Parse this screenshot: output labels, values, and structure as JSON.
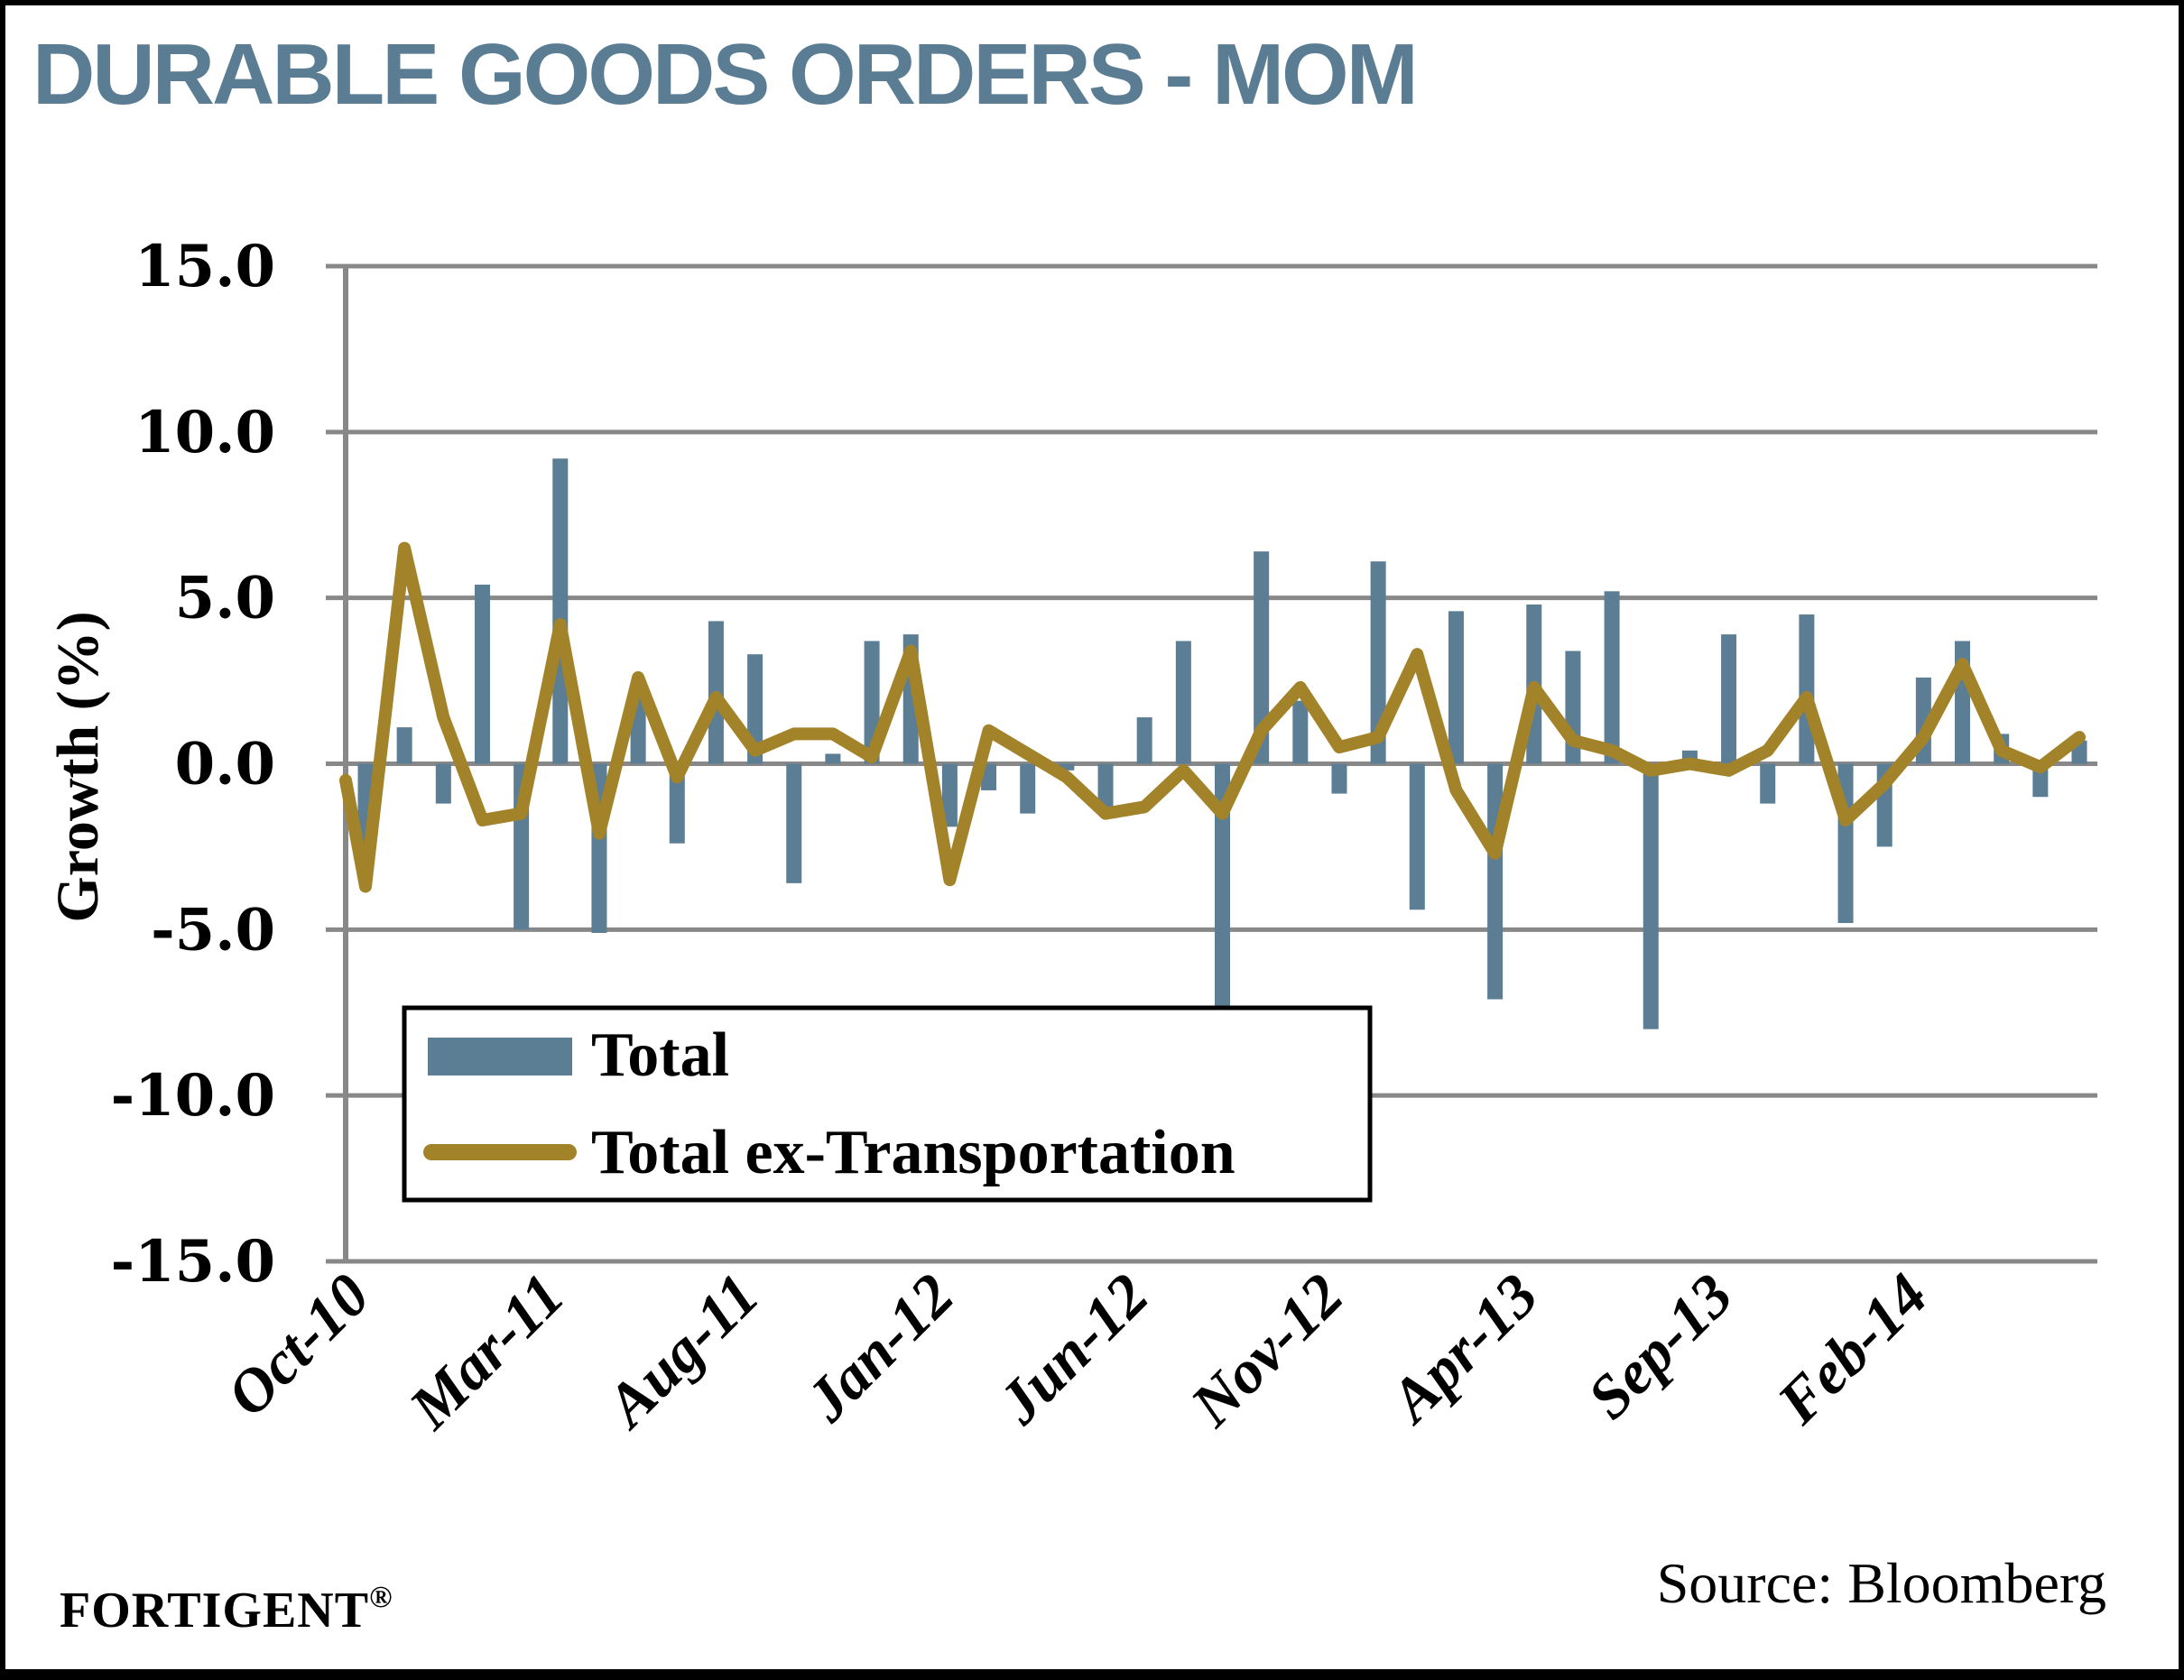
{
  "title": "DURABLE GOODS ORDERS - MOM",
  "footer": {
    "brand": "FORTIGENT",
    "brand_mark": "®",
    "source": "Source: Bloomberg"
  },
  "colors": {
    "title": "#5b7d93",
    "bars": "#5b7e94",
    "line": "#a3832a",
    "grid": "#888888"
  },
  "chart_data": {
    "type": "bar+line",
    "title": "DURABLE GOODS ORDERS - MOM",
    "xlabel": "",
    "ylabel": "Growth (%)",
    "ylim": [
      -15,
      15
    ],
    "yticks": [
      15,
      10,
      5,
      0,
      -5,
      -10,
      -15
    ],
    "ytick_labels": [
      "15.0",
      "10.0",
      "5.0",
      "0.0",
      "-5.0",
      "-10.0",
      "-15.0"
    ],
    "grid": true,
    "legend_position": "bottom-left",
    "x_tick_labels": [
      "Oct-10",
      "Mar-11",
      "Aug-11",
      "Jan-12",
      "Jun-12",
      "Nov-12",
      "Apr-13",
      "Sep-13",
      "Feb-14"
    ],
    "x_tick_every": 5,
    "categories": [
      "Oct-10",
      "Nov-10",
      "Dec-10",
      "Jan-11",
      "Feb-11",
      "Mar-11",
      "Apr-11",
      "May-11",
      "Jun-11",
      "Jul-11",
      "Aug-11",
      "Sep-11",
      "Oct-11",
      "Nov-11",
      "Dec-11",
      "Jan-12",
      "Feb-12",
      "Mar-12",
      "Apr-12",
      "May-12",
      "Jun-12",
      "Jul-12",
      "Aug-12",
      "Sep-12",
      "Oct-12",
      "Nov-12",
      "Dec-12",
      "Jan-13",
      "Feb-13",
      "Mar-13",
      "Apr-13",
      "May-13",
      "Jun-13",
      "Jul-13",
      "Aug-13",
      "Sep-13",
      "Oct-13",
      "Nov-13",
      "Dec-13",
      "Jan-14",
      "Feb-14",
      "Mar-14",
      "Apr-14",
      "May-14",
      "Jun-14"
    ],
    "line_leading_value": -0.5,
    "series": [
      {
        "name": "Total",
        "type": "bar",
        "values": [
          -2.6,
          1.1,
          -1.2,
          5.4,
          -5.0,
          9.2,
          -5.1,
          2.0,
          -2.4,
          4.3,
          3.3,
          -3.6,
          0.3,
          3.7,
          3.9,
          -1.9,
          -0.8,
          -1.5,
          -0.2,
          -1.3,
          1.4,
          3.7,
          -7.3,
          6.4,
          1.9,
          -0.9,
          6.1,
          -4.4,
          4.6,
          -7.1,
          4.8,
          3.4,
          5.2,
          -8.0,
          0.4,
          3.9,
          -1.2,
          4.5,
          -4.8,
          -2.5,
          2.6,
          3.7,
          0.9,
          -1.0,
          0.7
        ]
      },
      {
        "name": "Total ex-Transportation",
        "type": "line",
        "values": [
          -3.7,
          6.5,
          1.4,
          -1.7,
          -1.5,
          4.2,
          -2.1,
          2.6,
          -0.4,
          2.0,
          0.4,
          0.9,
          0.9,
          0.2,
          3.4,
          -3.5,
          1.0,
          0.3,
          -0.4,
          -1.5,
          -1.3,
          -0.2,
          -1.5,
          1.0,
          2.3,
          0.5,
          0.8,
          3.3,
          -0.8,
          -2.7,
          2.3,
          0.7,
          0.4,
          -0.2,
          0.0,
          -0.2,
          0.4,
          2.0,
          -1.7,
          -0.6,
          0.8,
          3.0,
          0.4,
          -0.1,
          0.8
        ]
      }
    ]
  }
}
